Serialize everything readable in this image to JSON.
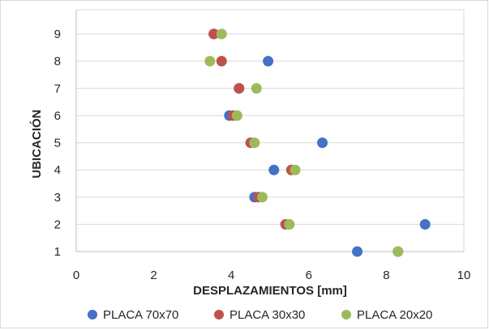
{
  "chart_data": {
    "type": "scatter",
    "title": "",
    "xlabel": "DESPLAZAMIENTOS [mm]",
    "ylabel": "UBICACIÓN",
    "xlim": [
      0,
      10
    ],
    "ylim": [
      1,
      9
    ],
    "x_ticks": [
      "0",
      "2",
      "4",
      "6",
      "8",
      "10"
    ],
    "y_ticks": [
      "1",
      "2",
      "3",
      "4",
      "5",
      "6",
      "7",
      "8",
      "9"
    ],
    "grid": "horizontal",
    "legend_position": "bottom",
    "series": [
      {
        "name": "PLACA 70x70",
        "color": "#4472C4",
        "x": [
          7.25,
          9.0,
          4.6,
          5.1,
          6.35,
          3.95,
          4.2,
          4.95,
          3.55
        ],
        "y": [
          1,
          2,
          3,
          4,
          5,
          6,
          7,
          8,
          9
        ]
      },
      {
        "name": "PLACA 30x30",
        "color": "#C0504D",
        "x": [
          8.3,
          5.4,
          4.7,
          5.55,
          4.5,
          4.05,
          4.2,
          3.75,
          3.55
        ],
        "y": [
          1,
          2,
          3,
          4,
          5,
          6,
          7,
          8,
          9
        ]
      },
      {
        "name": "PLACA 20x20",
        "color": "#9BBB59",
        "x": [
          8.3,
          5.5,
          4.8,
          5.65,
          4.6,
          4.15,
          4.65,
          3.45,
          3.75
        ],
        "y": [
          1,
          2,
          3,
          4,
          5,
          6,
          7,
          8,
          9
        ]
      }
    ]
  }
}
